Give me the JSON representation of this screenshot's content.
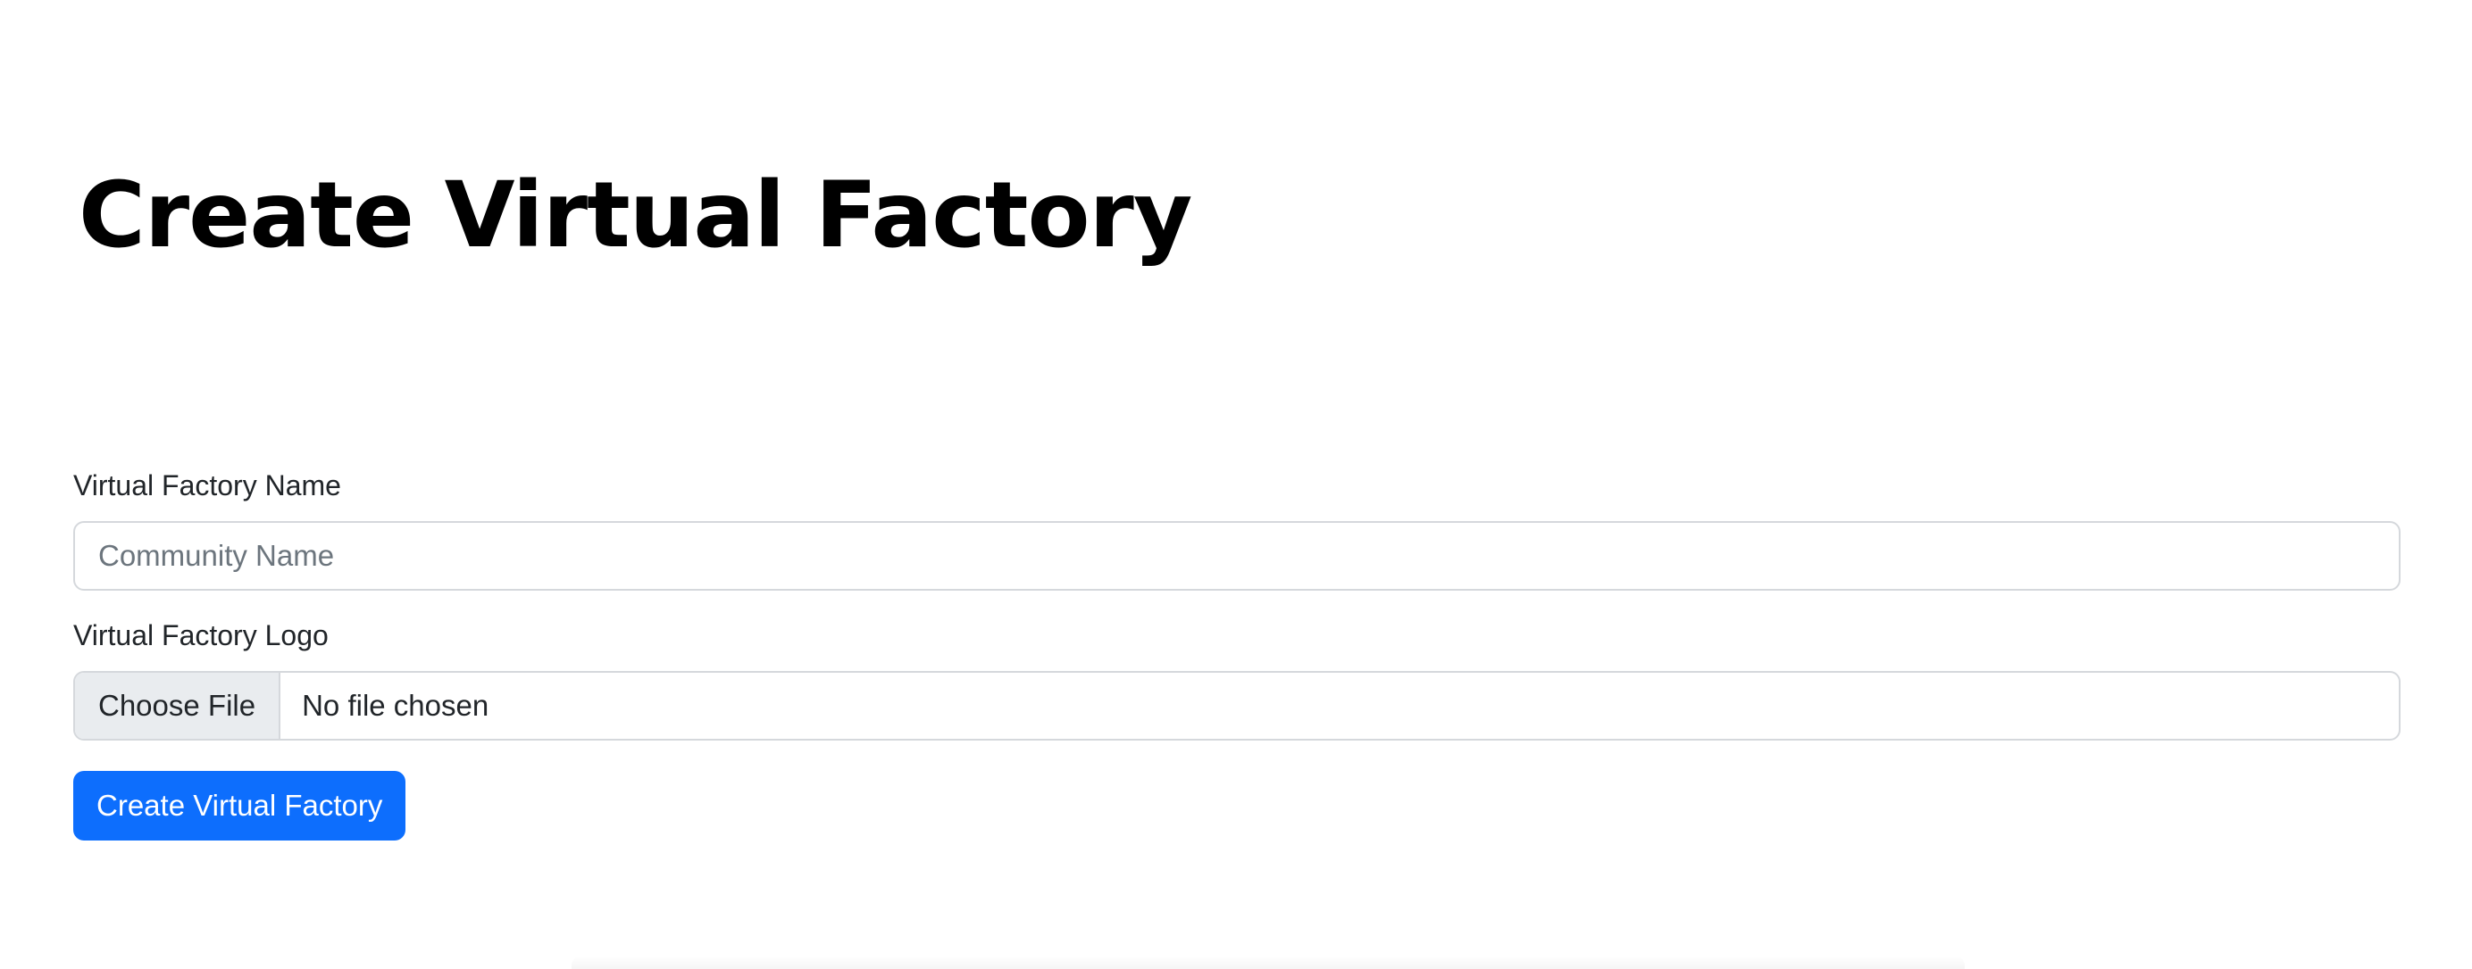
{
  "page": {
    "title": "Create Virtual Factory"
  },
  "form": {
    "name_label": "Virtual Factory Name",
    "name_placeholder": "Community Name",
    "name_value": "",
    "logo_label": "Virtual Factory Logo",
    "file_button_label": "Choose File",
    "file_status": "No file chosen",
    "submit_label": "Create Virtual Factory"
  },
  "colors": {
    "primary_button": "#0d6efd",
    "file_button_bg": "#e9ecef",
    "input_border": "#d5d8dc",
    "placeholder_text": "#6c757d"
  }
}
